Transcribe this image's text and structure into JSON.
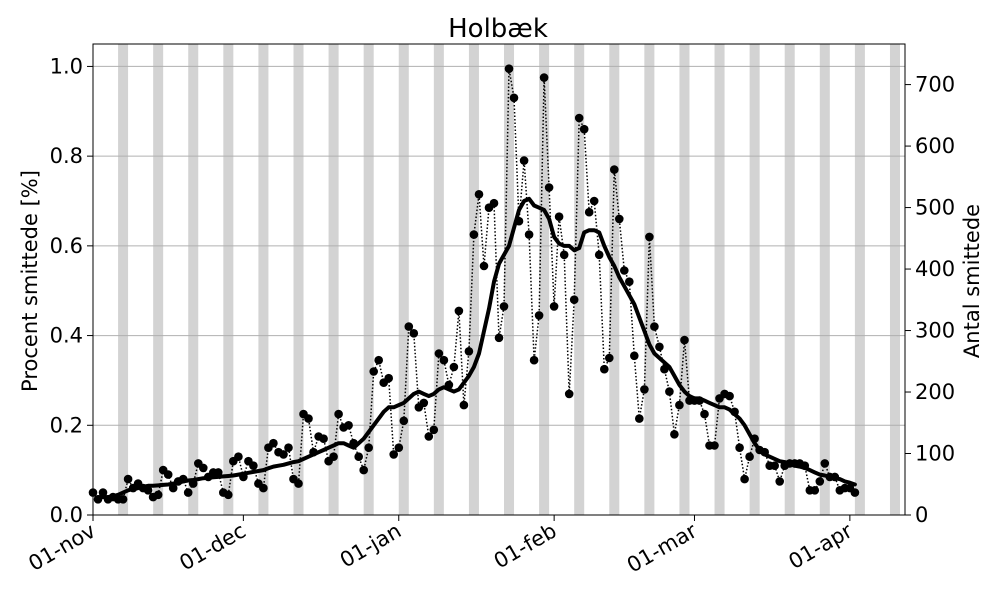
{
  "chart_data": {
    "type": "line",
    "title": "Holbæk",
    "ylabel": "Procent smittede [%]",
    "y2label": "Antal smittede",
    "start_date": "2021-11-01",
    "xlim": [
      "2021-11-01",
      "2022-04-12"
    ],
    "ylim": [
      0,
      1.05
    ],
    "y2lim": [
      0,
      766
    ],
    "x_ticks": [
      {
        "date": "2021-11-01",
        "label": "01-nov"
      },
      {
        "date": "2021-12-01",
        "label": "01-dec"
      },
      {
        "date": "2022-01-01",
        "label": "01-jan"
      },
      {
        "date": "2022-02-01",
        "label": "01-feb"
      },
      {
        "date": "2022-03-01",
        "label": "01-mar"
      },
      {
        "date": "2022-04-01",
        "label": "01-apr"
      }
    ],
    "y_ticks": [
      0.0,
      0.2,
      0.4,
      0.6,
      0.8,
      1.0
    ],
    "y_tick_labels": [
      "0.0",
      "0.2",
      "0.4",
      "0.6",
      "0.8",
      "1.0"
    ],
    "y2_ticks": [
      0,
      100,
      200,
      300,
      400,
      500,
      600,
      700
    ],
    "y2_tick_labels": [
      "0",
      "100",
      "200",
      "300",
      "400",
      "500",
      "600",
      "700"
    ],
    "grid": "horizontal",
    "weekend_bands": [
      "2021-11-06",
      "2021-11-13",
      "2021-11-20",
      "2021-11-27",
      "2021-12-04",
      "2021-12-11",
      "2021-12-18",
      "2021-12-25",
      "2022-01-01",
      "2022-01-08",
      "2022-01-15",
      "2022-01-22",
      "2022-01-29",
      "2022-02-05",
      "2022-02-12",
      "2022-02-19",
      "2022-02-26",
      "2022-03-05",
      "2022-03-12",
      "2022-03-19",
      "2022-03-26",
      "2022-04-02",
      "2022-04-09"
    ],
    "band_color": "#d3d3d3",
    "series": [
      {
        "name": "",
        "style": "dotted-markers",
        "color": "#000000",
        "y": [
          0.05,
          0.035,
          0.05,
          0.035,
          0.04,
          0.035,
          0.035,
          0.08,
          0.06,
          0.07,
          0.06,
          0.055,
          0.04,
          0.045,
          0.1,
          0.09,
          0.06,
          0.075,
          0.08,
          0.05,
          0.07,
          0.115,
          0.105,
          0.085,
          0.095,
          0.095,
          0.05,
          0.045,
          0.12,
          0.13,
          0.085,
          0.12,
          0.11,
          0.07,
          0.06,
          0.15,
          0.16,
          0.14,
          0.135,
          0.15,
          0.08,
          0.07,
          0.225,
          0.215,
          0.14,
          0.175,
          0.17,
          0.12,
          0.13,
          0.225,
          0.195,
          0.2,
          0.16,
          0.13,
          0.1,
          0.15,
          0.32,
          0.345,
          0.295,
          0.305,
          0.135,
          0.15,
          0.21,
          0.42,
          0.405,
          0.24,
          0.25,
          0.175,
          0.19,
          0.36,
          0.345,
          0.29,
          0.33,
          0.455,
          0.245,
          0.365,
          0.625,
          0.715,
          0.555,
          0.685,
          0.695,
          0.395,
          0.465,
          0.995,
          0.93,
          0.655,
          0.79,
          0.625,
          0.345,
          0.445,
          0.975,
          0.73,
          0.465,
          0.665,
          0.58,
          0.27,
          0.48,
          0.885,
          0.86,
          0.675,
          0.7,
          0.58,
          0.325,
          0.35,
          0.77,
          0.66,
          0.545,
          0.52,
          0.355,
          0.215,
          0.28,
          0.62,
          0.42,
          0.375,
          0.325,
          0.275,
          0.18,
          0.245,
          0.39,
          0.255,
          0.255,
          0.255,
          0.225,
          0.155,
          0.155,
          0.26,
          0.27,
          0.265,
          0.23,
          0.15,
          0.08,
          0.13,
          0.17,
          0.145,
          0.14,
          0.11,
          0.11,
          0.075,
          0.11,
          0.115,
          0.115,
          0.115,
          0.11,
          0.055,
          0.055,
          0.075,
          0.115,
          0.085,
          0.085,
          0.055,
          0.06,
          0.06,
          0.05
        ]
      },
      {
        "name": "",
        "style": "solid-thick",
        "color": "#000000",
        "start_index": 1,
        "y": [
          0.04,
          0.04,
          0.04,
          0.042,
          0.045,
          0.05,
          0.055,
          0.058,
          0.06,
          0.063,
          0.065,
          0.065,
          0.066,
          0.067,
          0.068,
          0.07,
          0.072,
          0.075,
          0.077,
          0.078,
          0.08,
          0.082,
          0.083,
          0.084,
          0.085,
          0.086,
          0.087,
          0.088,
          0.09,
          0.092,
          0.094,
          0.096,
          0.098,
          0.1,
          0.104,
          0.108,
          0.11,
          0.112,
          0.115,
          0.118,
          0.12,
          0.125,
          0.13,
          0.135,
          0.14,
          0.145,
          0.15,
          0.155,
          0.16,
          0.16,
          0.155,
          0.15,
          0.16,
          0.17,
          0.185,
          0.2,
          0.215,
          0.23,
          0.24,
          0.24,
          0.245,
          0.25,
          0.26,
          0.27,
          0.275,
          0.27,
          0.265,
          0.27,
          0.28,
          0.285,
          0.28,
          0.275,
          0.28,
          0.295,
          0.31,
          0.33,
          0.36,
          0.41,
          0.46,
          0.52,
          0.56,
          0.58,
          0.6,
          0.64,
          0.68,
          0.7,
          0.705,
          0.69,
          0.685,
          0.68,
          0.66,
          0.62,
          0.605,
          0.6,
          0.6,
          0.59,
          0.595,
          0.63,
          0.635,
          0.635,
          0.63,
          0.6,
          0.575,
          0.555,
          0.53,
          0.51,
          0.49,
          0.47,
          0.44,
          0.41,
          0.38,
          0.36,
          0.35,
          0.34,
          0.33,
          0.31,
          0.29,
          0.275,
          0.265,
          0.26,
          0.26,
          0.255,
          0.25,
          0.245,
          0.24,
          0.24,
          0.235,
          0.225,
          0.215,
          0.2,
          0.18,
          0.16,
          0.145,
          0.135,
          0.13,
          0.125,
          0.12,
          0.118,
          0.115,
          0.11,
          0.108,
          0.105,
          0.1,
          0.095,
          0.09,
          0.088,
          0.085,
          0.082,
          0.08,
          0.075,
          0.072,
          0.068
        ]
      }
    ]
  }
}
